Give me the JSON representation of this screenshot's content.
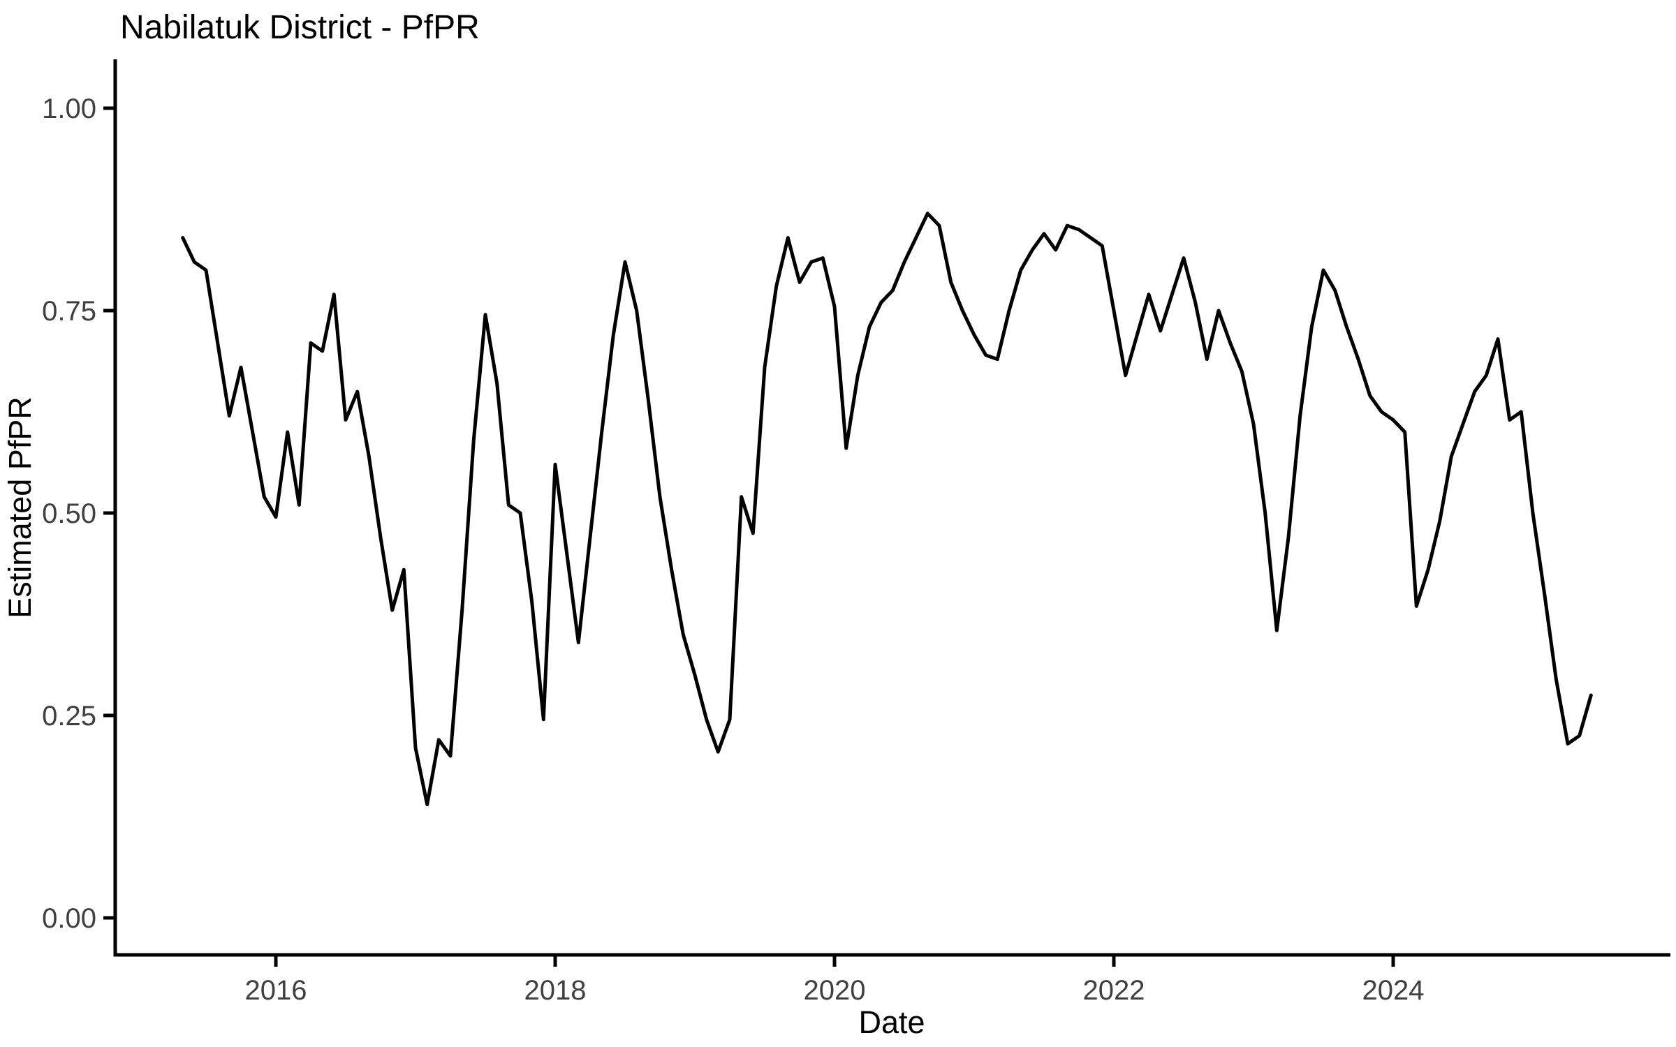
{
  "title": "Nabilatuk District - PfPR",
  "colors": {
    "background": "#FFFFFF",
    "line": "#000000",
    "axis": "#000000",
    "tick_label": "#404040",
    "title": "#000000"
  },
  "axes": {
    "x_label": "Date",
    "y_label": "Estimated PfPR",
    "x_ticks": [
      {
        "label": "2016",
        "year": 2016
      },
      {
        "label": "2018",
        "year": 2018
      },
      {
        "label": "2020",
        "year": 2020
      },
      {
        "label": "2022",
        "year": 2022
      },
      {
        "label": "2024",
        "year": 2024
      }
    ],
    "y_ticks": [
      {
        "label": "0.00",
        "value": 0.0
      },
      {
        "label": "0.25",
        "value": 0.25
      },
      {
        "label": "0.50",
        "value": 0.5
      },
      {
        "label": "0.75",
        "value": 0.75
      },
      {
        "label": "1.00",
        "value": 1.0
      }
    ]
  },
  "chart_data": {
    "type": "line",
    "title": "Nabilatuk District - PfPR",
    "xlabel": "Date",
    "ylabel": "Estimated PfPR",
    "series_name": "Estimated PfPR",
    "legend": "none",
    "grid": "off",
    "ylim": [
      0.0,
      1.05
    ],
    "xlim_months": [
      "2015-05",
      "2025-06"
    ],
    "x": [
      "2015-05",
      "2015-06",
      "2015-07",
      "2015-08",
      "2015-09",
      "2015-10",
      "2015-11",
      "2015-12",
      "2016-01",
      "2016-02",
      "2016-03",
      "2016-04",
      "2016-05",
      "2016-06",
      "2016-07",
      "2016-08",
      "2016-09",
      "2016-10",
      "2016-11",
      "2016-12",
      "2017-01",
      "2017-02",
      "2017-03",
      "2017-04",
      "2017-05",
      "2017-06",
      "2017-07",
      "2017-08",
      "2017-09",
      "2017-10",
      "2017-11",
      "2017-12",
      "2018-01",
      "2018-02",
      "2018-03",
      "2018-04",
      "2018-05",
      "2018-06",
      "2018-07",
      "2018-08",
      "2018-09",
      "2018-10",
      "2018-11",
      "2018-12",
      "2019-01",
      "2019-02",
      "2019-03",
      "2019-04",
      "2019-05",
      "2019-06",
      "2019-07",
      "2019-08",
      "2019-09",
      "2019-10",
      "2019-11",
      "2019-12",
      "2020-01",
      "2020-02",
      "2020-03",
      "2020-04",
      "2020-05",
      "2020-06",
      "2020-07",
      "2020-08",
      "2020-09",
      "2020-10",
      "2020-11",
      "2020-12",
      "2021-01",
      "2021-02",
      "2021-03",
      "2021-04",
      "2021-05",
      "2021-06",
      "2021-07",
      "2021-08",
      "2021-09",
      "2021-10",
      "2021-11",
      "2021-12",
      "2022-01",
      "2022-02",
      "2022-03",
      "2022-04",
      "2022-05",
      "2022-06",
      "2022-07",
      "2022-08",
      "2022-09",
      "2022-10",
      "2022-11",
      "2022-12",
      "2023-01",
      "2023-02",
      "2023-03",
      "2023-04",
      "2023-05",
      "2023-06",
      "2023-07",
      "2023-08",
      "2023-09",
      "2023-10",
      "2023-11",
      "2023-12",
      "2024-01",
      "2024-02",
      "2024-03",
      "2024-04",
      "2024-05",
      "2024-06",
      "2024-07",
      "2024-08",
      "2024-09",
      "2024-10",
      "2024-11",
      "2024-12",
      "2025-01",
      "2025-02",
      "2025-03",
      "2025-04",
      "2025-05",
      "2025-06"
    ],
    "values": [
      0.84,
      0.81,
      0.8,
      0.71,
      0.62,
      0.68,
      0.6,
      0.52,
      0.495,
      0.6,
      0.51,
      0.71,
      0.7,
      0.77,
      0.615,
      0.65,
      0.57,
      0.47,
      0.38,
      0.43,
      0.21,
      0.14,
      0.22,
      0.2,
      0.38,
      0.59,
      0.745,
      0.66,
      0.51,
      0.5,
      0.39,
      0.245,
      0.56,
      0.45,
      0.34,
      0.47,
      0.6,
      0.72,
      0.81,
      0.75,
      0.64,
      0.52,
      0.43,
      0.35,
      0.3,
      0.245,
      0.205,
      0.245,
      0.52,
      0.475,
      0.68,
      0.78,
      0.84,
      0.785,
      0.81,
      0.815,
      0.755,
      0.58,
      0.67,
      0.73,
      0.76,
      0.775,
      0.81,
      0.84,
      0.87,
      0.855,
      0.785,
      0.75,
      0.72,
      0.695,
      0.69,
      0.75,
      0.8,
      0.825,
      0.845,
      0.825,
      0.855,
      0.85,
      0.84,
      0.83,
      0.75,
      0.67,
      0.72,
      0.77,
      0.725,
      0.77,
      0.815,
      0.76,
      0.69,
      0.75,
      0.71,
      0.675,
      0.61,
      0.5,
      0.355,
      0.47,
      0.62,
      0.73,
      0.8,
      0.775,
      0.73,
      0.69,
      0.645,
      0.625,
      0.615,
      0.6,
      0.385,
      0.43,
      0.49,
      0.57,
      0.61,
      0.65,
      0.67,
      0.715,
      0.615,
      0.625,
      0.5,
      0.4,
      0.295,
      0.215,
      0.225,
      0.275
    ]
  }
}
